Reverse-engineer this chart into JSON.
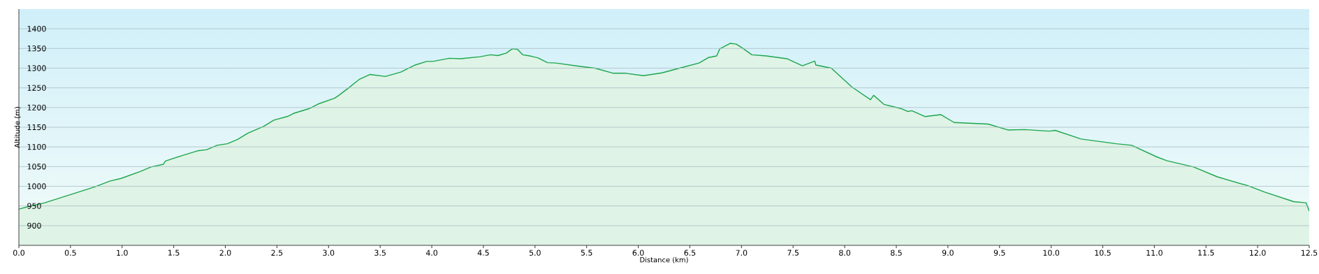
{
  "chart_data": {
    "type": "area",
    "xlabel": "Distance  (km)",
    "ylabel": "Altitude (m)",
    "x": [
      0,
      0.1,
      0.25,
      0.49,
      0.74,
      0.88,
      0.99,
      1.18,
      1.28,
      1.4,
      1.42,
      1.58,
      1.73,
      1.82,
      1.92,
      2.02,
      2.12,
      2.22,
      2.37,
      2.47,
      2.61,
      2.66,
      2.81,
      2.9,
      3.06,
      3.1,
      3.2,
      3.3,
      3.4,
      3.55,
      3.7,
      3.84,
      3.95,
      4.01,
      4.17,
      4.28,
      4.47,
      4.57,
      4.64,
      4.72,
      4.78,
      4.83,
      4.88,
      4.95,
      5.03,
      5.12,
      5.2,
      5.45,
      5.58,
      5.76,
      5.88,
      6.05,
      6.23,
      6.4,
      6.59,
      6.68,
      6.76,
      6.79,
      6.89,
      6.95,
      7.02,
      7.1,
      7.24,
      7.44,
      7.59,
      7.71,
      7.72,
      7.87,
      8.07,
      8.25,
      8.28,
      8.38,
      8.55,
      8.61,
      8.65,
      8.78,
      8.93,
      9.06,
      9.39,
      9.58,
      9.74,
      9.98,
      10.04,
      10.29,
      10.63,
      10.78,
      11.02,
      11.12,
      11.38,
      11.61,
      11.91,
      12.07,
      12.35,
      12.47,
      12.5
    ],
    "values": [
      942,
      949,
      958,
      978,
      999,
      1013,
      1020,
      1038,
      1049,
      1056,
      1064,
      1078,
      1090,
      1093,
      1104,
      1108,
      1119,
      1135,
      1152,
      1168,
      1178,
      1185,
      1197,
      1209,
      1224,
      1231,
      1251,
      1272,
      1284,
      1279,
      1290,
      1308,
      1317,
      1317,
      1325,
      1324,
      1329,
      1334,
      1332,
      1338,
      1349,
      1348,
      1334,
      1331,
      1326,
      1314,
      1313,
      1304,
      1300,
      1287,
      1287,
      1281,
      1288,
      1300,
      1313,
      1327,
      1331,
      1349,
      1363,
      1361,
      1349,
      1334,
      1331,
      1324,
      1306,
      1318,
      1308,
      1300,
      1252,
      1220,
      1231,
      1208,
      1197,
      1190,
      1192,
      1177,
      1182,
      1162,
      1158,
      1143,
      1144,
      1140,
      1142,
      1120,
      1108,
      1104,
      1075,
      1065,
      1049,
      1024,
      1001,
      985,
      961,
      958,
      937
    ],
    "color": "#1ca64c",
    "xlim": [
      0,
      12.5
    ],
    "ylim": [
      850,
      1450
    ],
    "xticks": [
      {
        "value": 0,
        "label": "0.0"
      },
      {
        "value": 0.5,
        "label": "0.5"
      },
      {
        "value": 1,
        "label": "1.0"
      },
      {
        "value": 1.5,
        "label": "1.5"
      },
      {
        "value": 2,
        "label": "2.0"
      },
      {
        "value": 2.5,
        "label": "2.5"
      },
      {
        "value": 3,
        "label": "3.0"
      },
      {
        "value": 3.5,
        "label": "3.5"
      },
      {
        "value": 4,
        "label": "4.0"
      },
      {
        "value": 4.5,
        "label": "4.5"
      },
      {
        "value": 5,
        "label": "5.0"
      },
      {
        "value": 5.5,
        "label": "5.5"
      },
      {
        "value": 6,
        "label": "6.0"
      },
      {
        "value": 6.5,
        "label": "6.5"
      },
      {
        "value": 7,
        "label": "7.0"
      },
      {
        "value": 7.5,
        "label": "7.5"
      },
      {
        "value": 8,
        "label": "8.0"
      },
      {
        "value": 8.5,
        "label": "8.5"
      },
      {
        "value": 9,
        "label": "9.0"
      },
      {
        "value": 9.5,
        "label": "9.5"
      },
      {
        "value": 10,
        "label": "10.0"
      },
      {
        "value": 10.5,
        "label": "10.5"
      },
      {
        "value": 11,
        "label": "11.0"
      },
      {
        "value": 11.5,
        "label": "11.5"
      },
      {
        "value": 12,
        "label": "12.0"
      },
      {
        "value": 12.5,
        "label": "12.5"
      }
    ],
    "yticks": [
      900,
      950,
      1000,
      1050,
      1100,
      1150,
      1200,
      1250,
      1300,
      1350,
      1400
    ],
    "grid": "y"
  }
}
